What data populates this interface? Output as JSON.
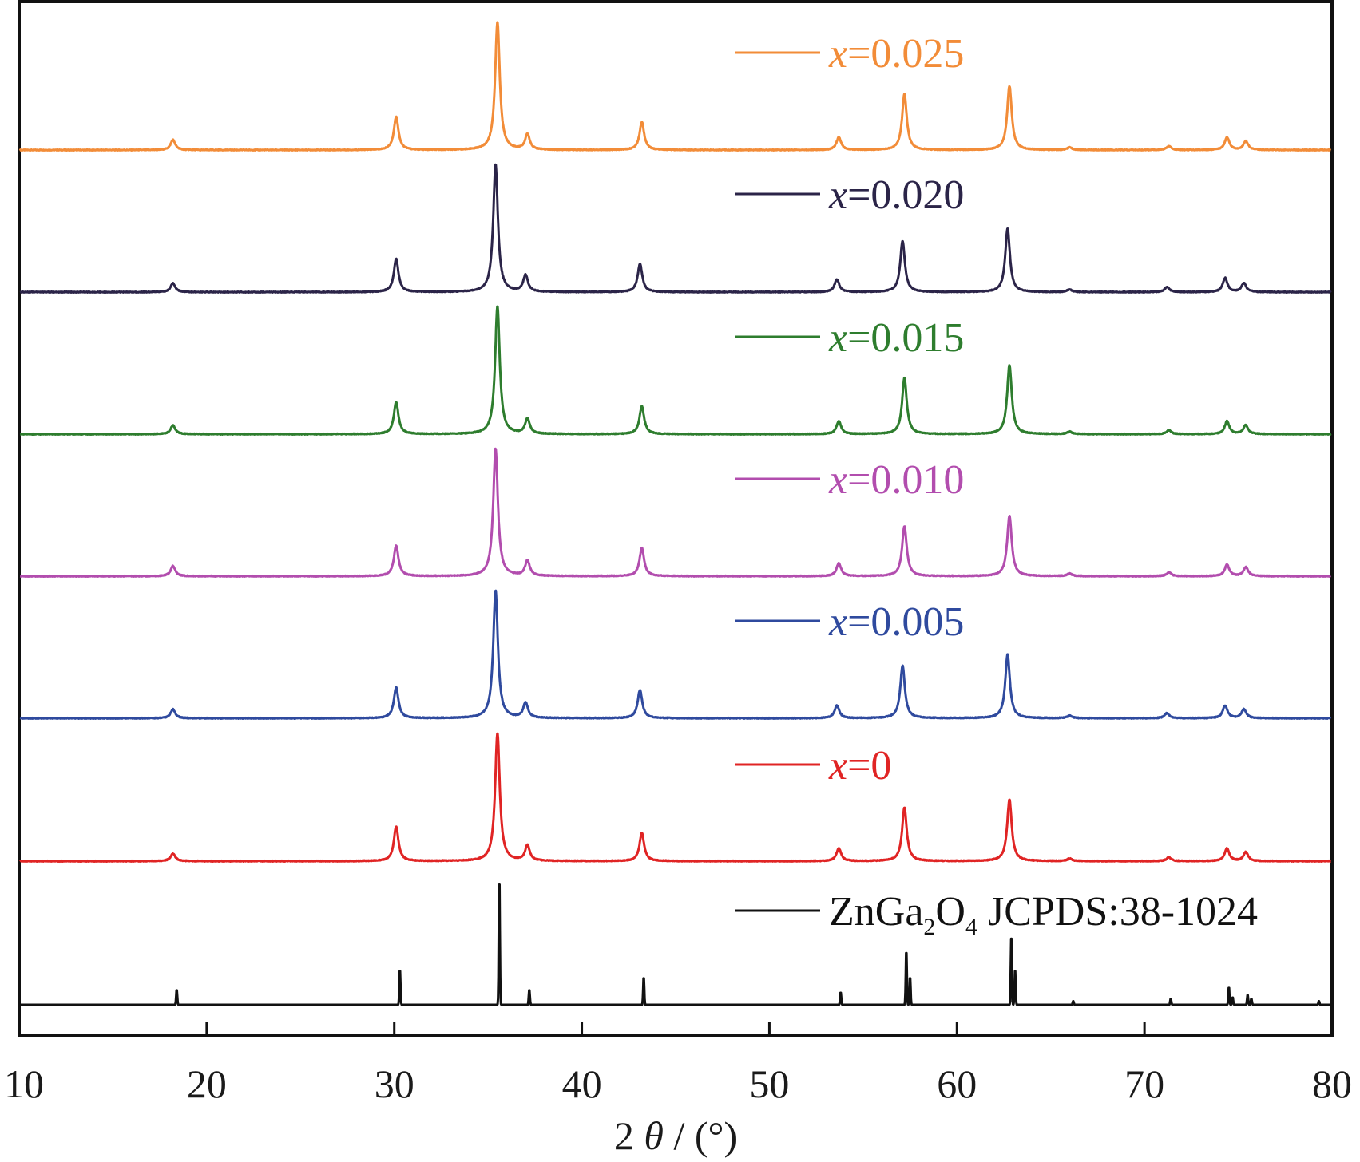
{
  "chart_data": {
    "type": "line",
    "xlabel": {
      "prefix": "2 ",
      "symbol": "θ",
      "suffix": " / (°)"
    },
    "ylabel": "",
    "xlim": [
      10,
      80
    ],
    "xticks": [
      10,
      20,
      30,
      40,
      50,
      60,
      70,
      80
    ],
    "xtick_labels": [
      "10",
      "20",
      "30",
      "40",
      "50",
      "60",
      "70",
      "80"
    ],
    "yaxis_visible": false,
    "grid": false,
    "legend_placement": "right, one entry beside each trace",
    "series": [
      {
        "label": {
          "var": "x",
          "rest": "=0.025"
        },
        "color": "#f28c38",
        "kind": "measured",
        "peaks": [
          [
            18.2,
            0.08
          ],
          [
            30.1,
            0.26
          ],
          [
            35.5,
            1.0
          ],
          [
            37.1,
            0.12
          ],
          [
            43.2,
            0.22
          ],
          [
            53.7,
            0.1
          ],
          [
            57.2,
            0.44
          ],
          [
            62.8,
            0.5
          ],
          [
            66.0,
            0.02
          ],
          [
            71.3,
            0.03
          ],
          [
            74.4,
            0.1
          ],
          [
            75.4,
            0.07
          ]
        ]
      },
      {
        "label": {
          "var": "x",
          "rest": "=0.020"
        },
        "color": "#2b2448",
        "kind": "measured",
        "peaks": [
          [
            18.2,
            0.07
          ],
          [
            30.1,
            0.26
          ],
          [
            35.4,
            1.0
          ],
          [
            37.0,
            0.13
          ],
          [
            43.1,
            0.22
          ],
          [
            53.6,
            0.1
          ],
          [
            57.1,
            0.4
          ],
          [
            62.7,
            0.5
          ],
          [
            66.0,
            0.02
          ],
          [
            71.2,
            0.04
          ],
          [
            74.3,
            0.11
          ],
          [
            75.3,
            0.07
          ]
        ]
      },
      {
        "label": {
          "var": "x",
          "rest": "=0.015"
        },
        "color": "#2e7d2e",
        "kind": "measured",
        "peaks": [
          [
            18.2,
            0.07
          ],
          [
            30.1,
            0.25
          ],
          [
            35.5,
            1.0
          ],
          [
            37.1,
            0.12
          ],
          [
            43.2,
            0.22
          ],
          [
            53.7,
            0.1
          ],
          [
            57.2,
            0.44
          ],
          [
            62.8,
            0.54
          ],
          [
            66.0,
            0.02
          ],
          [
            71.3,
            0.03
          ],
          [
            74.4,
            0.1
          ],
          [
            75.4,
            0.07
          ]
        ]
      },
      {
        "label": {
          "var": "x",
          "rest": "=0.010"
        },
        "color": "#b24dae",
        "kind": "measured",
        "peaks": [
          [
            18.2,
            0.08
          ],
          [
            30.1,
            0.24
          ],
          [
            35.4,
            1.0
          ],
          [
            37.1,
            0.12
          ],
          [
            43.2,
            0.22
          ],
          [
            53.7,
            0.1
          ],
          [
            57.2,
            0.39
          ],
          [
            62.8,
            0.47
          ],
          [
            66.0,
            0.02
          ],
          [
            71.3,
            0.03
          ],
          [
            74.4,
            0.09
          ],
          [
            75.4,
            0.07
          ]
        ]
      },
      {
        "label": {
          "var": "x",
          "rest": "=0.005"
        },
        "color": "#2f4a9e",
        "kind": "measured",
        "peaks": [
          [
            18.2,
            0.07
          ],
          [
            30.1,
            0.24
          ],
          [
            35.4,
            1.0
          ],
          [
            37.0,
            0.12
          ],
          [
            43.1,
            0.22
          ],
          [
            53.6,
            0.1
          ],
          [
            57.1,
            0.41
          ],
          [
            62.7,
            0.5
          ],
          [
            66.0,
            0.02
          ],
          [
            71.2,
            0.04
          ],
          [
            74.3,
            0.1
          ],
          [
            75.3,
            0.07
          ]
        ]
      },
      {
        "label": {
          "var": "x",
          "rest": "=0"
        },
        "color": "#e02424",
        "kind": "measured",
        "peaks": [
          [
            18.2,
            0.06
          ],
          [
            30.1,
            0.27
          ],
          [
            35.5,
            1.0
          ],
          [
            37.1,
            0.12
          ],
          [
            43.2,
            0.22
          ],
          [
            53.7,
            0.1
          ],
          [
            57.2,
            0.42
          ],
          [
            62.8,
            0.48
          ],
          [
            66.0,
            0.02
          ],
          [
            71.3,
            0.03
          ],
          [
            74.4,
            0.1
          ],
          [
            75.4,
            0.07
          ]
        ]
      },
      {
        "label": {
          "main": "ZnGa",
          "sub1": "2",
          "mid": "O",
          "sub2": "4",
          "tail": " JCPDS:38-1024"
        },
        "color": "#111111",
        "kind": "reference",
        "peaks": [
          [
            18.4,
            0.12
          ],
          [
            30.3,
            0.28
          ],
          [
            35.6,
            1.0
          ],
          [
            37.2,
            0.12
          ],
          [
            43.3,
            0.22
          ],
          [
            53.8,
            0.1
          ],
          [
            57.3,
            0.43
          ],
          [
            57.5,
            0.22
          ],
          [
            62.9,
            0.55
          ],
          [
            63.1,
            0.28
          ],
          [
            66.2,
            0.03
          ],
          [
            71.4,
            0.05
          ],
          [
            74.5,
            0.14
          ],
          [
            74.7,
            0.06
          ],
          [
            75.5,
            0.08
          ],
          [
            75.7,
            0.05
          ],
          [
            79.3,
            0.03
          ]
        ]
      }
    ]
  }
}
